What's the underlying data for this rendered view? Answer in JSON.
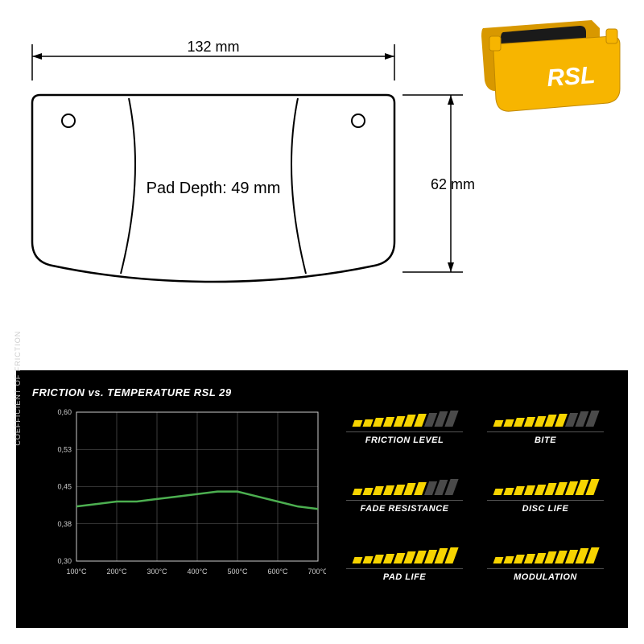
{
  "drawing": {
    "width_label": "132 mm",
    "height_label": "62 mm",
    "pad_depth_label": "Pad Depth: 49 mm",
    "stroke_color": "#000000",
    "stroke_width": 2
  },
  "product": {
    "body_color": "#f7b500",
    "body_shadow": "#d89800",
    "friction_color": "#1a1a1a",
    "logo_text": "RSL",
    "logo_color": "#ffffff"
  },
  "chart": {
    "title": "FRICTION vs. TEMPERATURE RSL 29",
    "y_axis_label": "COEFFICIENT OF FRICTION",
    "background": "#000000",
    "grid_color": "#666666",
    "axis_color": "#cccccc",
    "line_color": "#4caf50",
    "line_width": 2.5,
    "x_ticks": [
      "100°C",
      "200°C",
      "300°C",
      "400°C",
      "500°C",
      "600°C",
      "700°C"
    ],
    "y_ticks": [
      "0,30",
      "0,38",
      "0,45",
      "0,53",
      "0,60"
    ],
    "xlim": [
      100,
      700
    ],
    "ylim": [
      0.3,
      0.6
    ],
    "line_data": [
      {
        "x": 100,
        "y": 0.41
      },
      {
        "x": 150,
        "y": 0.415
      },
      {
        "x": 200,
        "y": 0.42
      },
      {
        "x": 250,
        "y": 0.42
      },
      {
        "x": 300,
        "y": 0.425
      },
      {
        "x": 350,
        "y": 0.43
      },
      {
        "x": 400,
        "y": 0.435
      },
      {
        "x": 450,
        "y": 0.44
      },
      {
        "x": 500,
        "y": 0.44
      },
      {
        "x": 550,
        "y": 0.43
      },
      {
        "x": 600,
        "y": 0.42
      },
      {
        "x": 650,
        "y": 0.41
      },
      {
        "x": 700,
        "y": 0.405
      }
    ],
    "tick_fontsize": 9,
    "tick_color": "#cccccc"
  },
  "ratings": {
    "bar_count": 10,
    "filled_color": "#f7d400",
    "empty_color": "#4a4a4a",
    "bar_min_height": 8,
    "bar_max_height": 20,
    "items": [
      {
        "label": "FRICTION LEVEL",
        "value": 7
      },
      {
        "label": "BITE",
        "value": 7
      },
      {
        "label": "FADE RESISTANCE",
        "value": 7
      },
      {
        "label": "DISC LIFE",
        "value": 10
      },
      {
        "label": "PAD LIFE",
        "value": 10
      },
      {
        "label": "MODULATION",
        "value": 10
      }
    ]
  }
}
